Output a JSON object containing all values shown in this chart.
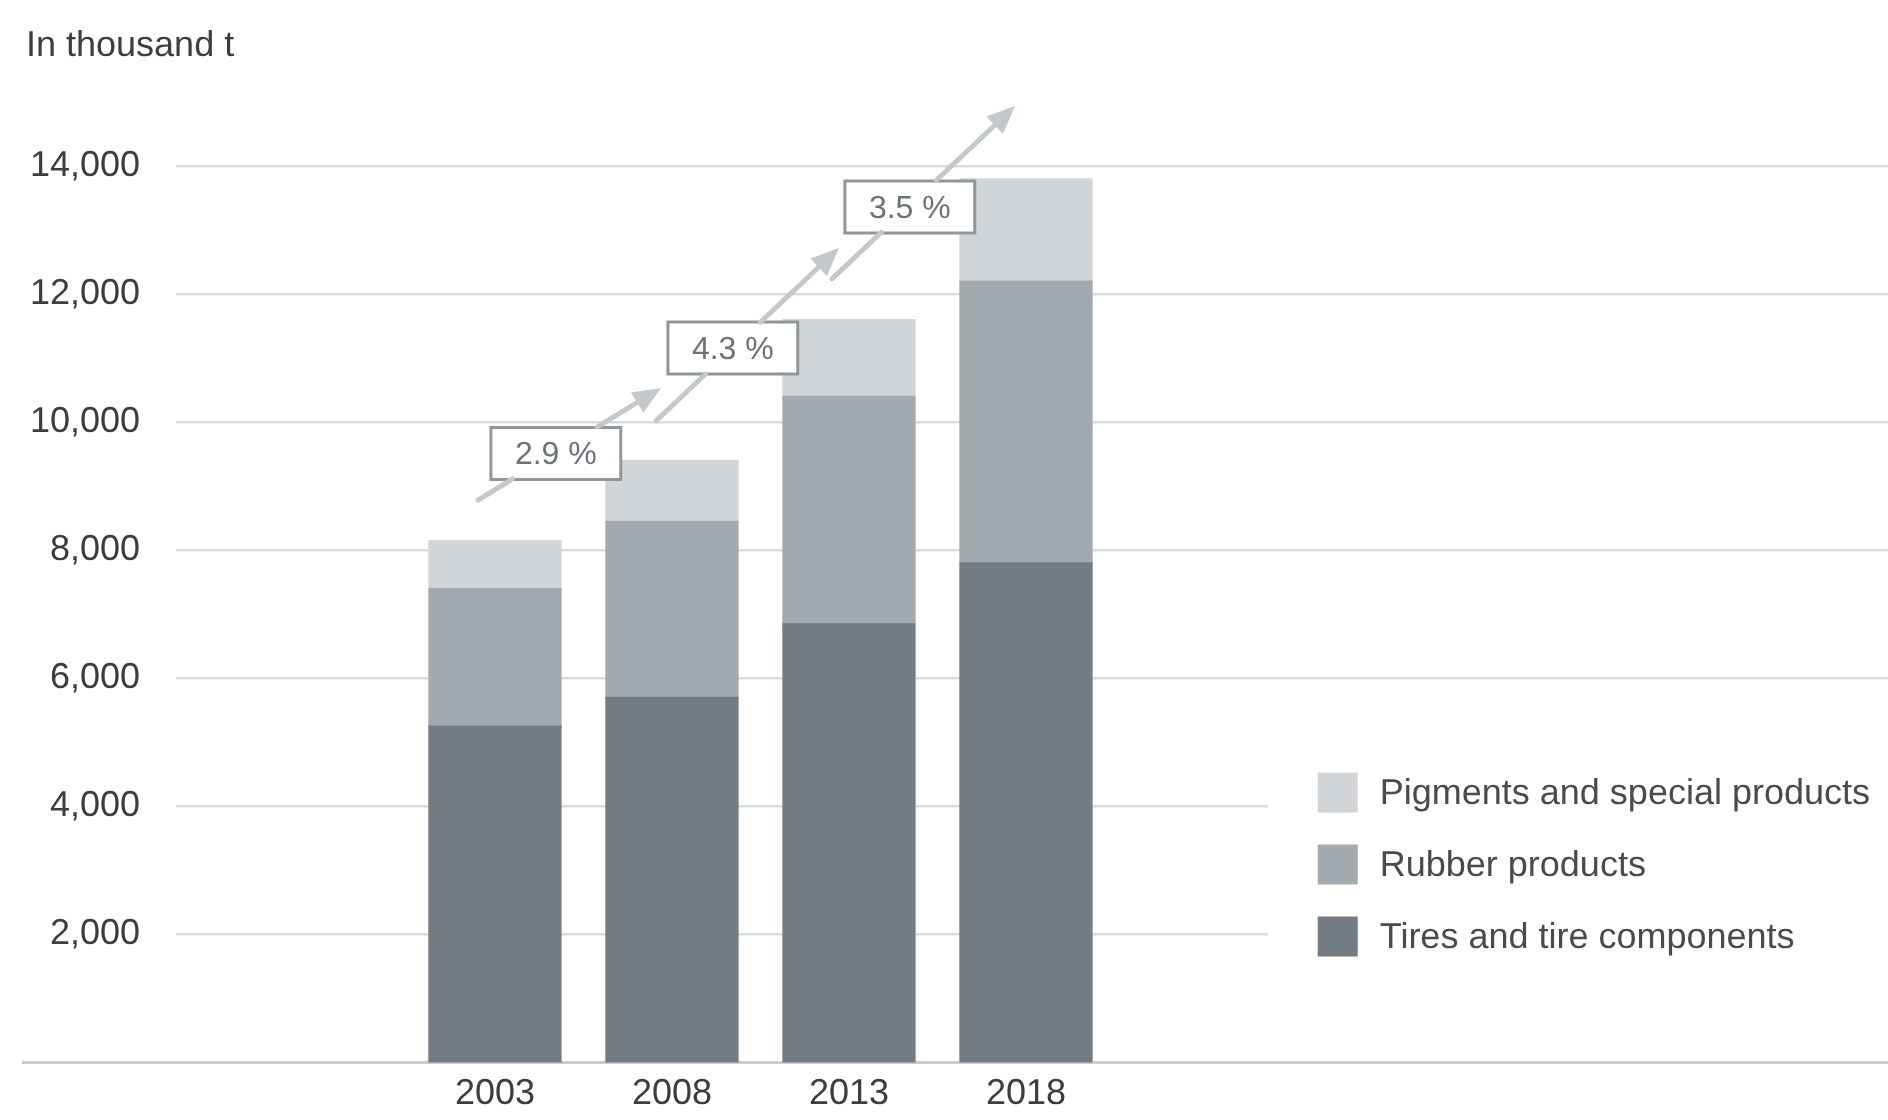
{
  "chart_data": {
    "type": "bar",
    "ylabel": "In thousand t",
    "categories": [
      "2003",
      "2008",
      "2013",
      "2018"
    ],
    "series": [
      {
        "name": "Tires and tire components",
        "color": "#747c83",
        "values": [
          5250,
          5700,
          6850,
          7800
        ]
      },
      {
        "name": "Rubber products",
        "color": "#a3aaaf",
        "values": [
          2150,
          2750,
          3550,
          4400
        ]
      },
      {
        "name": "Pigments and special products",
        "color": "#d1d5d8",
        "values": [
          750,
          950,
          1200,
          1600
        ]
      }
    ],
    "stacked": true,
    "ylim": [
      0,
      14000
    ],
    "yticks": [
      {
        "value": 2000,
        "label": "2,000"
      },
      {
        "value": 4000,
        "label": "4,000"
      },
      {
        "value": 6000,
        "label": "6,000"
      },
      {
        "value": 8000,
        "label": "8,000"
      },
      {
        "value": 10000,
        "label": "10,000"
      },
      {
        "value": 12000,
        "label": "12,000"
      },
      {
        "value": 14000,
        "label": "14,000"
      }
    ],
    "grid": "y",
    "legend": "bottom right",
    "annotations": [
      "2.9 %",
      "4.3 %",
      "3.5 %"
    ]
  }
}
